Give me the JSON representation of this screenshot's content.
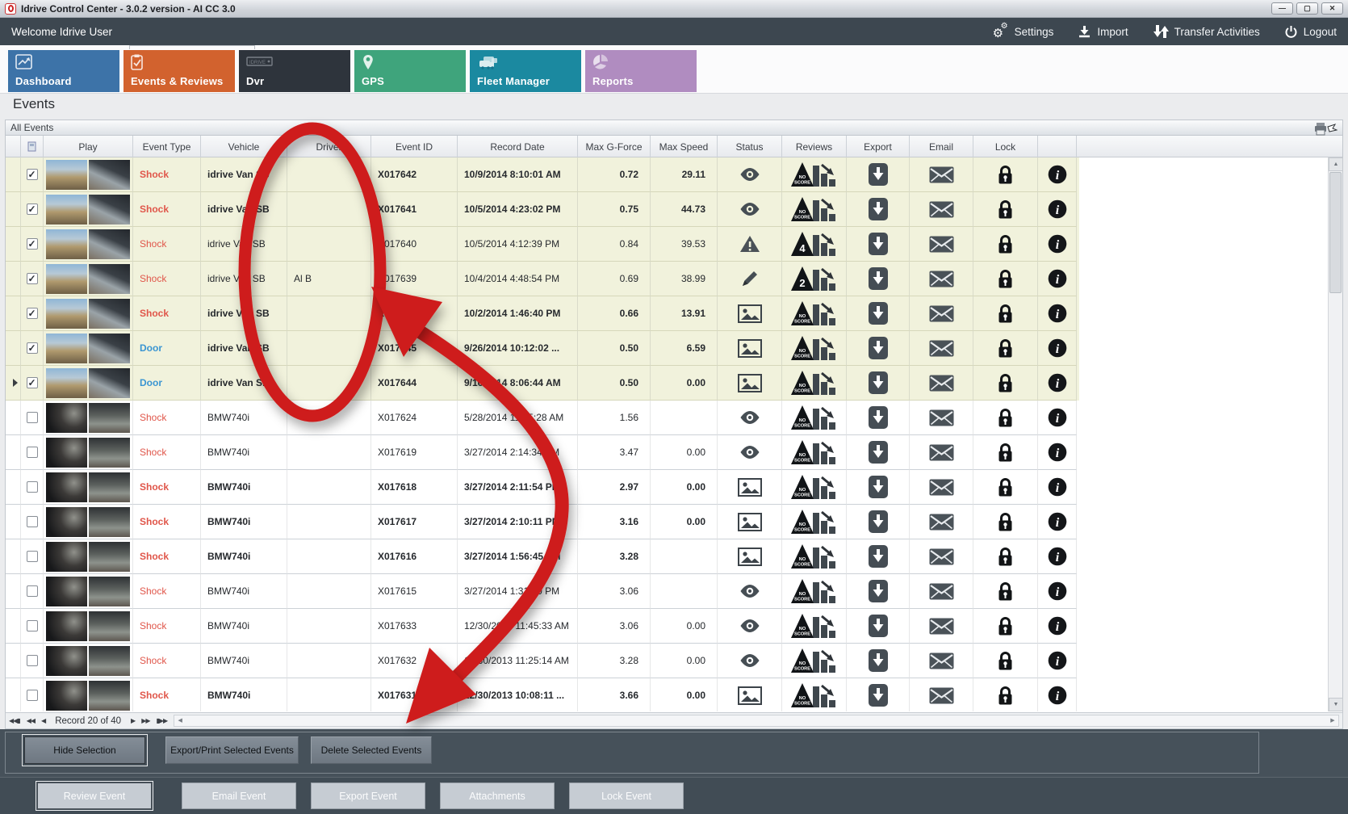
{
  "window": {
    "title": "Idrive Control Center - 3.0.2 version - AI CC 3.0",
    "controls": {
      "minimize": "—",
      "maximize": "▢",
      "close": "✕"
    }
  },
  "topbar": {
    "welcome": "Welcome Idrive User",
    "actions": [
      {
        "label": "Settings",
        "icon": "gears-icon"
      },
      {
        "label": "Import",
        "icon": "import-icon"
      },
      {
        "label": "Transfer Activities",
        "icon": "transfer-icon"
      },
      {
        "label": "Logout",
        "icon": "power-icon"
      }
    ]
  },
  "tabs": [
    {
      "label": "Dashboard",
      "color": "#3d73a8",
      "icon": "chart-icon",
      "active": false
    },
    {
      "label": "Events & Reviews",
      "color": "#d2622e",
      "icon": "clipboard-icon",
      "active": true
    },
    {
      "label": "Dvr",
      "color": "#2e343c",
      "icon": "dvr-icon",
      "active": false
    },
    {
      "label": "GPS",
      "color": "#3fa47c",
      "icon": "pin-icon",
      "active": false
    },
    {
      "label": "Fleet Manager",
      "color": "#1b89a0",
      "icon": "fleet-icon",
      "active": false
    },
    {
      "label": "Reports",
      "color": "#b08cc0",
      "icon": "pie-icon",
      "active": false
    }
  ],
  "page": {
    "heading": "Events",
    "group_label": "All Events"
  },
  "table": {
    "headers": [
      "",
      "",
      "Play",
      "Event Type",
      "Vehicle",
      "Driver",
      "Event ID",
      "Record Date",
      "Max G-Force",
      "Max Speed",
      "Status",
      "Reviews",
      "Export",
      "Email",
      "Lock",
      ""
    ],
    "rows": [
      {
        "checked": true,
        "selected": false,
        "bold": true,
        "event_type": "Shock",
        "vehicle": "idrive Van SB",
        "driver": "",
        "event_id": "X017642",
        "record_date": "10/9/2014 8:10:01 AM",
        "max_g_force": "0.72",
        "max_speed": "29.11",
        "status": "eye",
        "review": "NO SCORE",
        "scene": "day"
      },
      {
        "checked": true,
        "selected": false,
        "bold": true,
        "event_type": "Shock",
        "vehicle": "idrive Van SB",
        "driver": "",
        "event_id": "X017641",
        "record_date": "10/5/2014 4:23:02 PM",
        "max_g_force": "0.75",
        "max_speed": "44.73",
        "status": "eye",
        "review": "NO SCORE",
        "scene": "day"
      },
      {
        "checked": true,
        "selected": false,
        "bold": false,
        "event_type": "Shock",
        "vehicle": "idrive Van SB",
        "driver": "",
        "event_id": "X017640",
        "record_date": "10/5/2014 4:12:39 PM",
        "max_g_force": "0.84",
        "max_speed": "39.53",
        "status": "warning",
        "review": "4",
        "scene": "day"
      },
      {
        "checked": true,
        "selected": false,
        "bold": false,
        "event_type": "Shock",
        "vehicle": "idrive Van SB",
        "driver": "Al B",
        "event_id": "X017639",
        "record_date": "10/4/2014 4:48:54 PM",
        "max_g_force": "0.69",
        "max_speed": "38.99",
        "status": "pencil",
        "review": "2",
        "scene": "day"
      },
      {
        "checked": true,
        "selected": false,
        "bold": true,
        "event_type": "Shock",
        "vehicle": "idrive Van SB",
        "driver": "",
        "event_id": "X017638",
        "record_date": "10/2/2014 1:46:40 PM",
        "max_g_force": "0.66",
        "max_speed": "13.91",
        "status": "image",
        "review": "NO SCORE",
        "scene": "day"
      },
      {
        "checked": true,
        "selected": false,
        "bold": true,
        "event_type": "Door",
        "vehicle": "idrive Van SB",
        "driver": "",
        "event_id": "X017645",
        "record_date": "9/26/2014 10:12:02 ...",
        "max_g_force": "0.50",
        "max_speed": "6.59",
        "status": "image",
        "review": "NO SCORE",
        "scene": "day"
      },
      {
        "checked": true,
        "selected": true,
        "bold": true,
        "event_type": "Door",
        "vehicle": "idrive Van S...",
        "driver": "",
        "event_id": "X017644",
        "record_date": "9/16/2014 8:06:44 AM",
        "max_g_force": "0.50",
        "max_speed": "0.00",
        "status": "image",
        "review": "NO SCORE",
        "scene": "day"
      },
      {
        "checked": false,
        "selected": false,
        "bold": false,
        "event_type": "Shock",
        "vehicle": "BMW740i",
        "driver": "",
        "event_id": "X017624",
        "record_date": "5/28/2014 11:55:28 AM",
        "max_g_force": "1.56",
        "max_speed": "",
        "status": "eye",
        "review": "NO SCORE",
        "scene": "night"
      },
      {
        "checked": false,
        "selected": false,
        "bold": false,
        "event_type": "Shock",
        "vehicle": "BMW740i",
        "driver": "",
        "event_id": "X017619",
        "record_date": "3/27/2014 2:14:34 PM",
        "max_g_force": "3.47",
        "max_speed": "0.00",
        "status": "eye",
        "review": "NO SCORE",
        "scene": "night"
      },
      {
        "checked": false,
        "selected": false,
        "bold": true,
        "event_type": "Shock",
        "vehicle": "BMW740i",
        "driver": "",
        "event_id": "X017618",
        "record_date": "3/27/2014 2:11:54 PM",
        "max_g_force": "2.97",
        "max_speed": "0.00",
        "status": "image",
        "review": "NO SCORE",
        "scene": "night"
      },
      {
        "checked": false,
        "selected": false,
        "bold": true,
        "event_type": "Shock",
        "vehicle": "BMW740i",
        "driver": "",
        "event_id": "X017617",
        "record_date": "3/27/2014 2:10:11 PM",
        "max_g_force": "3.16",
        "max_speed": "0.00",
        "status": "image",
        "review": "NO SCORE",
        "scene": "night"
      },
      {
        "checked": false,
        "selected": false,
        "bold": true,
        "event_type": "Shock",
        "vehicle": "BMW740i",
        "driver": "",
        "event_id": "X017616",
        "record_date": "3/27/2014 1:56:45 PM",
        "max_g_force": "3.28",
        "max_speed": "",
        "status": "image",
        "review": "NO SCORE",
        "scene": "night"
      },
      {
        "checked": false,
        "selected": false,
        "bold": false,
        "event_type": "Shock",
        "vehicle": "BMW740i",
        "driver": "",
        "event_id": "X017615",
        "record_date": "3/27/2014 1:31:30 PM",
        "max_g_force": "3.06",
        "max_speed": "",
        "status": "eye",
        "review": "NO SCORE",
        "scene": "night"
      },
      {
        "checked": false,
        "selected": false,
        "bold": false,
        "event_type": "Shock",
        "vehicle": "BMW740i",
        "driver": "",
        "event_id": "X017633",
        "record_date": "12/30/2013 11:45:33 AM",
        "max_g_force": "3.06",
        "max_speed": "0.00",
        "status": "eye",
        "review": "NO SCORE",
        "scene": "night"
      },
      {
        "checked": false,
        "selected": false,
        "bold": false,
        "event_type": "Shock",
        "vehicle": "BMW740i",
        "driver": "",
        "event_id": "X017632",
        "record_date": "12/30/2013 11:25:14 AM",
        "max_g_force": "3.28",
        "max_speed": "0.00",
        "status": "eye",
        "review": "NO SCORE",
        "scene": "night"
      },
      {
        "checked": false,
        "selected": false,
        "bold": true,
        "event_type": "Shock",
        "vehicle": "BMW740i",
        "driver": "",
        "event_id": "X017631",
        "record_date": "12/30/2013 10:08:11 ...",
        "max_g_force": "3.66",
        "max_speed": "0.00",
        "status": "image",
        "review": "NO SCORE",
        "scene": "night"
      }
    ]
  },
  "pagination": {
    "label": "Record 20 of 40"
  },
  "selection_actions": [
    "Hide Selection",
    "Export/Print Selected Events",
    "Delete Selected  Events"
  ],
  "event_actions": [
    "Review Event",
    "Email Event",
    "Export Event",
    "Attachments",
    "Lock Event"
  ],
  "colors": {
    "shock": "#e0564a",
    "door": "#3a95d2",
    "annotation_red": "#ce1b1b",
    "checked_row_bg": "#f1f2dc",
    "dark_bar": "#3d4750"
  },
  "annotations": {
    "circle_highlights": "Driver column (empty driver cells)",
    "arrow_points_to": "Delete Selected  Events button"
  }
}
